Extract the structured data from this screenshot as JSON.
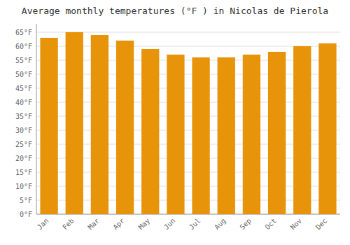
{
  "chart_data": {
    "type": "bar",
    "title": "Average monthly temperatures (°F ) in Nicolas de Pierola",
    "categories": [
      "Jan",
      "Feb",
      "Mar",
      "Apr",
      "May",
      "Jun",
      "Jul",
      "Aug",
      "Sep",
      "Oct",
      "Nov",
      "Dec"
    ],
    "values": [
      63,
      65,
      64,
      62,
      59,
      57,
      56,
      56,
      57,
      58,
      60,
      61
    ],
    "color": "#E8940A",
    "ylim": [
      0,
      68
    ],
    "yticks": [
      {
        "value": 0,
        "label": "0°F"
      },
      {
        "value": 5,
        "label": "5°F"
      },
      {
        "value": 10,
        "label": "10°F"
      },
      {
        "value": 15,
        "label": "15°F"
      },
      {
        "value": 20,
        "label": "20°F"
      },
      {
        "value": 25,
        "label": "25°F"
      },
      {
        "value": 30,
        "label": "30°F"
      },
      {
        "value": 35,
        "label": "35°F"
      },
      {
        "value": 40,
        "label": "40°F"
      },
      {
        "value": 45,
        "label": "45°F"
      },
      {
        "value": 50,
        "label": "50°F"
      },
      {
        "value": 55,
        "label": "55°F"
      },
      {
        "value": 60,
        "label": "60°F"
      },
      {
        "value": 65,
        "label": "65°F"
      }
    ],
    "grid": true
  }
}
